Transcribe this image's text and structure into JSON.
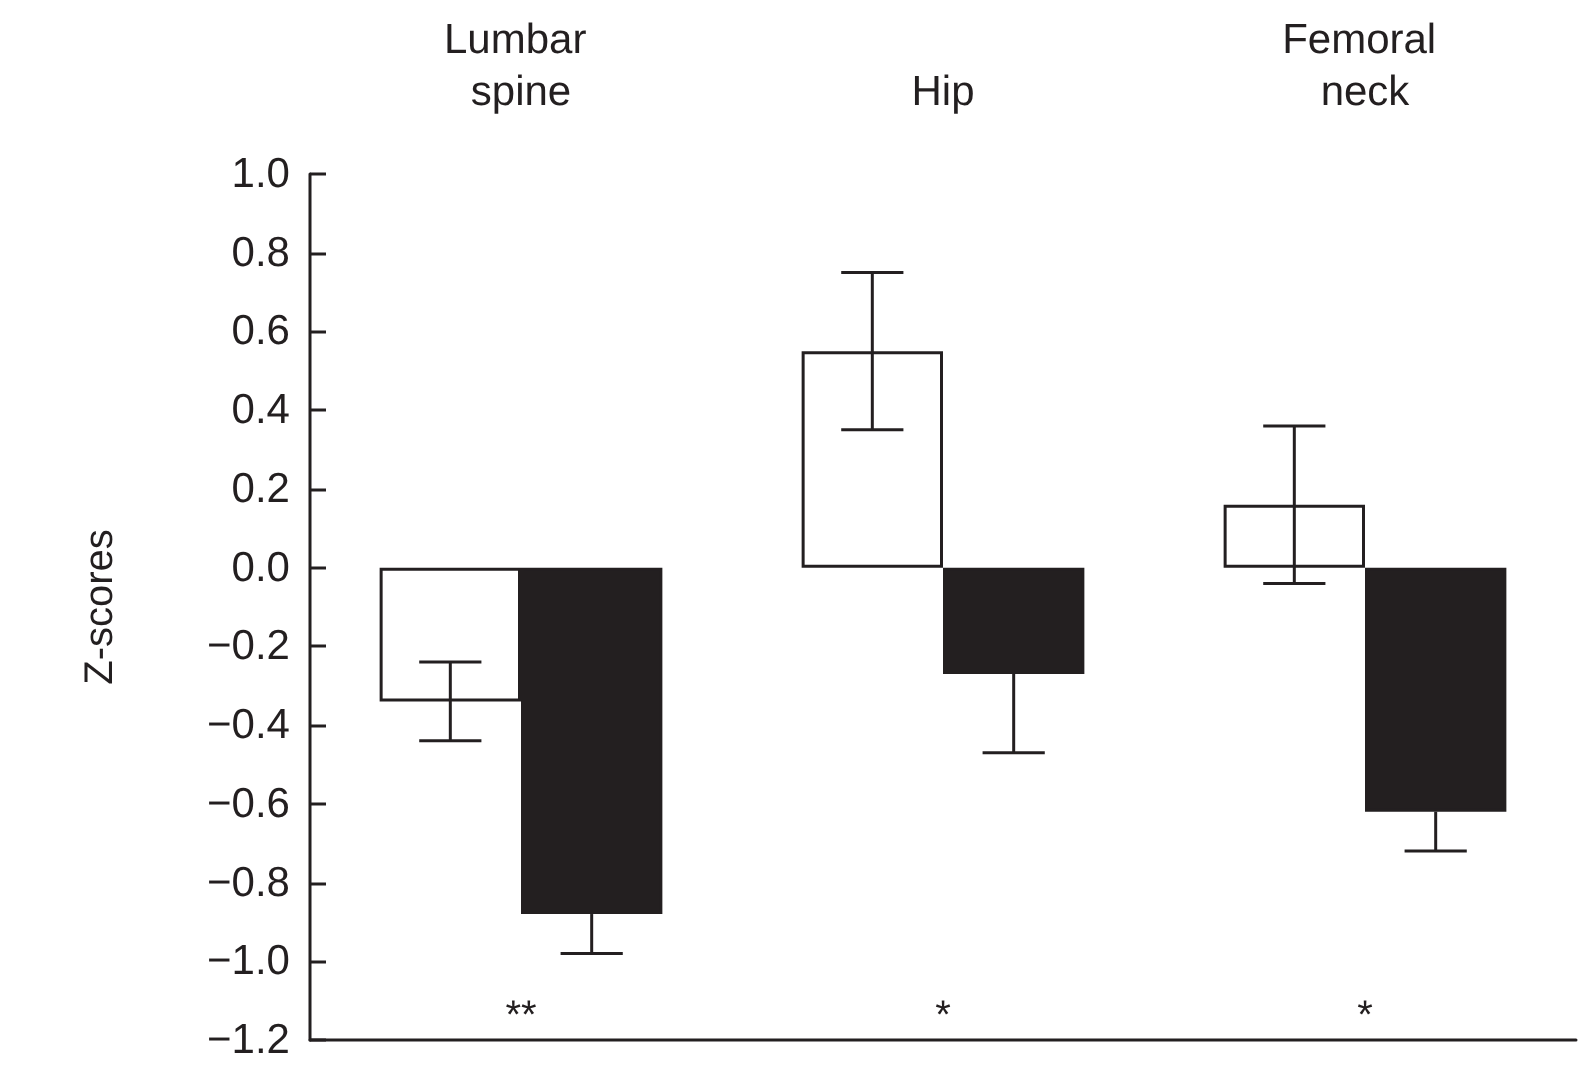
{
  "chart_data": {
    "type": "bar",
    "ylabel": "Z-scores",
    "categories": [
      "Lumbar spine",
      "Hip",
      "Femoral neck"
    ],
    "series": [
      {
        "color": "#ffffff",
        "values": [
          -0.34,
          0.55,
          0.16
        ],
        "errors": [
          0.1,
          0.2,
          0.2
        ]
      },
      {
        "color": "#231f20",
        "values": [
          -0.88,
          -0.27,
          -0.62
        ],
        "errors": [
          [
            -0.98,
            -0.88
          ],
          [
            -0.47,
            -0.27
          ],
          [
            -0.72,
            -0.62
          ]
        ]
      }
    ],
    "ylim": [
      -1.2,
      1.0
    ],
    "yticks": [
      {
        "value": -1.2,
        "label": "−1.2"
      },
      {
        "value": -1.0,
        "label": "−1.0"
      },
      {
        "value": -0.8,
        "label": "−0.8"
      },
      {
        "value": -0.6,
        "label": "−0.6"
      },
      {
        "value": -0.4,
        "label": "−0.4"
      },
      {
        "value": -0.2,
        "label": "−0.2"
      },
      {
        "value": 0,
        "label": "0.0"
      },
      {
        "value": 0.2,
        "label": "0.2"
      },
      {
        "value": 0.4,
        "label": "0.4"
      },
      {
        "value": 0.6,
        "label": "0.6"
      },
      {
        "value": 0.8,
        "label": "0.8"
      },
      {
        "value": 1.0,
        "label": "1.0"
      }
    ],
    "grid": false,
    "annotations": [
      "**",
      "*",
      "*"
    ]
  }
}
